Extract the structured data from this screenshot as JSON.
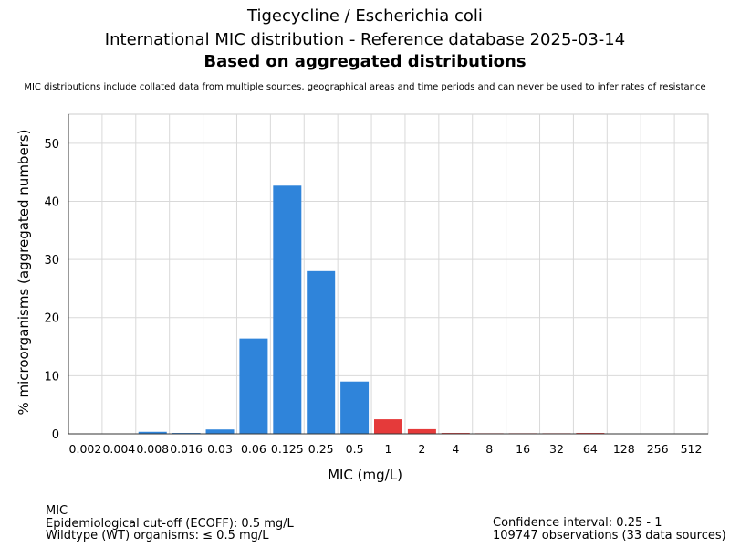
{
  "header": {
    "title_line1": "Tigecycline / Escherichia coli",
    "title_line2": "International MIC distribution - Reference database 2025-03-14",
    "title_line3": "Based on aggregated distributions",
    "note": "MIC distributions include collated data from multiple sources, geographical areas and time periods and can never be used to infer rates of resistance"
  },
  "footer": {
    "left": [
      "MIC",
      "Epidemiological cut-off (ECOFF): 0.5 mg/L",
      "Wildtype (WT) organisms: ≤ 0.5 mg/L"
    ],
    "right": [
      "Confidence interval: 0.25 - 1",
      "109747 observations (33 data sources)"
    ]
  },
  "chart_data": {
    "type": "bar",
    "xlabel": "MIC (mg/L)",
    "ylabel": "% microorganisms (aggregated numbers)",
    "ylim": [
      0,
      55
    ],
    "yticks": [
      0,
      10,
      20,
      30,
      40,
      50
    ],
    "grid": true,
    "categories": [
      "0.002",
      "0.004",
      "0.008",
      "0.016",
      "0.03",
      "0.06",
      "0.125",
      "0.25",
      "0.5",
      "1",
      "2",
      "4",
      "8",
      "16",
      "32",
      "64",
      "128",
      "256",
      "512"
    ],
    "values": [
      0,
      0,
      0.35,
      0.15,
      0.75,
      16.4,
      42.7,
      28.0,
      9.0,
      2.5,
      0.8,
      0.15,
      0.1,
      0.1,
      0.1,
      0.15,
      0,
      0,
      0
    ],
    "colors": {
      "wildtype": "#2f84da",
      "non_wildtype": "#e53a3a"
    },
    "wildtype_upto_category": "0.5"
  }
}
